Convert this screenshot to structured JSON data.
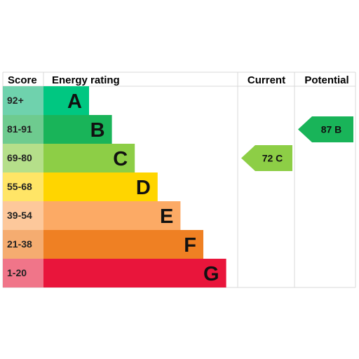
{
  "header": {
    "score": "Score",
    "energy_rating": "Energy rating",
    "current": "Current",
    "potential": "Potential"
  },
  "chart_data": {
    "type": "bar",
    "bands": [
      {
        "letter": "A",
        "score": "92+",
        "color": "#00c781",
        "scoreColor": "#6fd2ad"
      },
      {
        "letter": "B",
        "score": "81-91",
        "color": "#19b459",
        "scoreColor": "#6ecb8f"
      },
      {
        "letter": "C",
        "score": "69-80",
        "color": "#8dce46",
        "scoreColor": "#b5df8a"
      },
      {
        "letter": "D",
        "score": "55-68",
        "color": "#ffd500",
        "scoreColor": "#ffe566"
      },
      {
        "letter": "E",
        "score": "39-54",
        "color": "#fcaa65",
        "scoreColor": "#fdc89b"
      },
      {
        "letter": "F",
        "score": "21-38",
        "color": "#ef8023",
        "scoreColor": "#f5ac70"
      },
      {
        "letter": "G",
        "score": "1-20",
        "color": "#e9153b",
        "scoreColor": "#f07589"
      }
    ],
    "current": {
      "label": "72 C",
      "band": "C",
      "color": "#8dce46"
    },
    "potential": {
      "label": "87 B",
      "band": "B",
      "color": "#19b459"
    }
  }
}
